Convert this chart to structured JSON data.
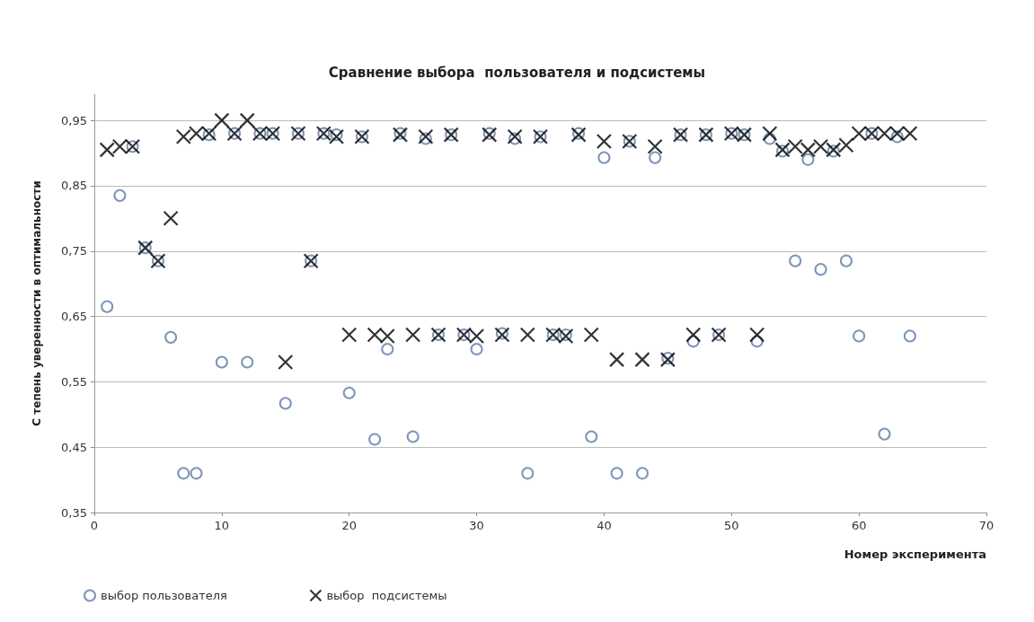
{
  "chart_data": {
    "type": "scatter",
    "title": "Сравнение выбора  пользователя и подсистемы",
    "xlabel": "Номер эксперимента",
    "ylabel": "С тепень уверенности в оптимальности",
    "x": [
      1,
      2,
      3,
      4,
      5,
      6,
      7,
      8,
      9,
      10,
      11,
      12,
      13,
      14,
      15,
      16,
      17,
      18,
      19,
      20,
      21,
      22,
      23,
      24,
      25,
      26,
      27,
      28,
      29,
      30,
      31,
      32,
      33,
      34,
      35,
      36,
      37,
      38,
      39,
      40,
      41,
      42,
      43,
      44,
      45,
      46,
      47,
      48,
      49,
      50,
      51,
      52,
      53,
      54,
      55,
      56,
      57,
      58,
      59,
      60,
      61,
      62,
      63,
      64
    ],
    "series": [
      {
        "name": "выбор пользователя",
        "color": "#5b7aa6",
        "marker": "circle",
        "values": [
          0.665,
          0.835,
          0.91,
          0.755,
          0.735,
          0.618,
          0.41,
          0.41,
          0.928,
          0.58,
          0.93,
          0.58,
          0.93,
          0.93,
          0.517,
          0.93,
          0.735,
          0.93,
          0.928,
          0.533,
          0.925,
          0.462,
          0.6,
          0.93,
          0.466,
          0.922,
          0.622,
          0.928,
          0.622,
          0.6,
          0.93,
          0.624,
          0.922,
          0.41,
          0.925,
          0.622,
          0.622,
          0.93,
          0.466,
          0.893,
          0.41,
          0.918,
          0.41,
          0.893,
          0.586,
          0.928,
          0.612,
          0.928,
          0.622,
          0.93,
          0.928,
          0.612,
          0.922,
          0.903,
          0.735,
          0.89,
          0.722,
          0.903,
          0.735,
          0.62,
          0.93,
          0.47,
          0.925,
          0.62
        ]
      },
      {
        "name": "выбор  подсистемы",
        "color": "#000000",
        "marker": "cross",
        "values": [
          0.905,
          0.91,
          0.91,
          0.755,
          0.735,
          0.8,
          0.925,
          0.93,
          0.93,
          0.95,
          0.93,
          0.95,
          0.93,
          0.93,
          0.58,
          0.93,
          0.735,
          0.93,
          0.925,
          0.622,
          0.925,
          0.622,
          0.62,
          0.928,
          0.622,
          0.925,
          0.622,
          0.928,
          0.622,
          0.62,
          0.928,
          0.622,
          0.925,
          0.622,
          0.925,
          0.622,
          0.62,
          0.928,
          0.622,
          0.918,
          0.584,
          0.918,
          0.584,
          0.91,
          0.584,
          0.928,
          0.622,
          0.928,
          0.622,
          0.93,
          0.928,
          0.622,
          0.93,
          0.905,
          0.91,
          0.905,
          0.91,
          0.905,
          0.912,
          0.93,
          0.93,
          0.93,
          0.93,
          0.93
        ]
      }
    ],
    "xlim": [
      0,
      70
    ],
    "xticks": [
      0,
      10,
      20,
      30,
      40,
      50,
      60,
      70
    ],
    "ylim": [
      0.35,
      0.99
    ],
    "yticks": [
      {
        "value": 0.35,
        "label": "0,35"
      },
      {
        "value": 0.45,
        "label": "0,45"
      },
      {
        "value": 0.55,
        "label": "0,55"
      },
      {
        "value": 0.65,
        "label": "0,65"
      },
      {
        "value": 0.75,
        "label": "0,75"
      },
      {
        "value": 0.85,
        "label": "0,85"
      },
      {
        "value": 0.95,
        "label": "0,95"
      }
    ],
    "grid": "y",
    "legend": "bottom left"
  }
}
